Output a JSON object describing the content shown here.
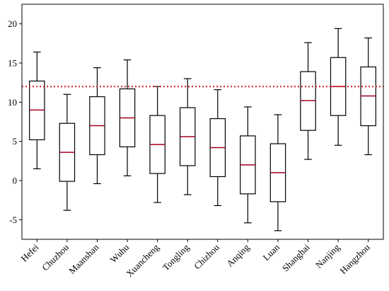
{
  "chart_data": {
    "type": "box",
    "title": "",
    "xlabel": "",
    "ylabel": "",
    "ylim": [
      -7.5,
      22.5
    ],
    "yticks": [
      -5,
      0,
      5,
      10,
      15,
      20
    ],
    "ytick_labels": [
      "-5",
      "0",
      "5",
      "10",
      "15",
      "20"
    ],
    "grid": false,
    "categories": [
      "Hefei",
      "Chuzhou",
      "Maanshan",
      "Wuhu",
      "Xuancheng",
      "Tongling",
      "Chizhou",
      "Anqing",
      "Luan",
      "Shanghai",
      "Nanjing",
      "Hangzhou"
    ],
    "boxes": [
      {
        "whisker_low": 1.5,
        "q1": 5.2,
        "median": 9.0,
        "q3": 12.7,
        "whisker_high": 16.4
      },
      {
        "whisker_low": -3.8,
        "q1": -0.1,
        "median": 3.6,
        "q3": 7.3,
        "whisker_high": 11.0
      },
      {
        "whisker_low": -0.4,
        "q1": 3.3,
        "median": 7.0,
        "q3": 10.7,
        "whisker_high": 14.4
      },
      {
        "whisker_low": 0.6,
        "q1": 4.3,
        "median": 8.0,
        "q3": 11.7,
        "whisker_high": 15.4
      },
      {
        "whisker_low": -2.8,
        "q1": 0.9,
        "median": 4.6,
        "q3": 8.3,
        "whisker_high": 12.0
      },
      {
        "whisker_low": -1.8,
        "q1": 1.9,
        "median": 5.6,
        "q3": 9.3,
        "whisker_high": 13.0
      },
      {
        "whisker_low": -3.2,
        "q1": 0.5,
        "median": 4.2,
        "q3": 7.9,
        "whisker_high": 11.6
      },
      {
        "whisker_low": -5.4,
        "q1": -1.7,
        "median": 2.0,
        "q3": 5.7,
        "whisker_high": 9.4
      },
      {
        "whisker_low": -6.4,
        "q1": -2.7,
        "median": 1.0,
        "q3": 4.7,
        "whisker_high": 8.4
      },
      {
        "whisker_low": 2.7,
        "q1": 6.4,
        "median": 10.2,
        "q3": 13.9,
        "whisker_high": 17.6
      },
      {
        "whisker_low": 4.5,
        "q1": 8.3,
        "median": 12.0,
        "q3": 15.7,
        "whisker_high": 19.4
      },
      {
        "whisker_low": 3.3,
        "q1": 7.0,
        "median": 10.8,
        "q3": 14.5,
        "whisker_high": 18.2
      }
    ],
    "reference_line": {
      "y": 12.0,
      "color": "#d62728",
      "style": "dotted"
    },
    "colors": {
      "box": "#000000",
      "median": "#a50021",
      "reference": "#d62728"
    }
  }
}
